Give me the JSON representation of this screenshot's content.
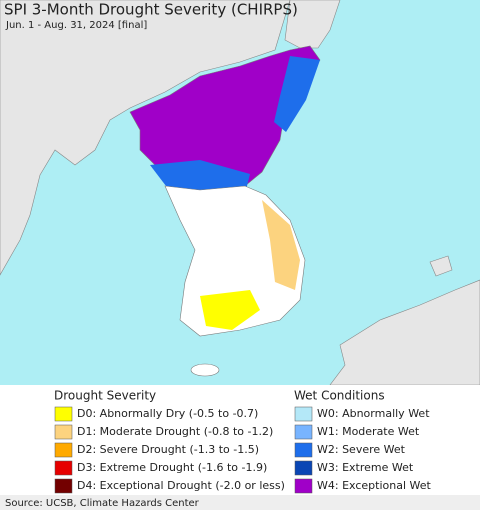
{
  "header": {
    "title": "SPI 3-Month Drought Severity (CHIRPS)",
    "subtitle": "Jun. 1 - Aug. 31, 2024 [final]"
  },
  "legend": {
    "groups": [
      {
        "title": "Drought Severity",
        "items": [
          {
            "label": "D0: Abnormally Dry (-0.5 to -0.7)",
            "color": "#ffff00"
          },
          {
            "label": "D1: Moderate Drought (-0.8 to -1.2)",
            "color": "#fcd37f"
          },
          {
            "label": "D2: Severe Drought (-1.3 to -1.5)",
            "color": "#ffaa00"
          },
          {
            "label": "D3: Extreme Drought (-1.6 to -1.9)",
            "color": "#e60000"
          },
          {
            "label": "D4: Exceptional Drought (-2.0 or less)",
            "color": "#730000"
          }
        ]
      },
      {
        "title": "Wet Conditions",
        "items": [
          {
            "label": "W0: Abnormally Wet",
            "color": "#b4e8f8"
          },
          {
            "label": "W1: Moderate Wet",
            "color": "#78b4ff"
          },
          {
            "label": "W2: Severe Wet",
            "color": "#1e6eeb"
          },
          {
            "label": "W3: Extreme Wet",
            "color": "#0a46b4"
          },
          {
            "label": "W4: Exceptional Wet",
            "color": "#a000c8"
          }
        ]
      }
    ]
  },
  "footer": {
    "source": "Source: UCSB, Climate Hazards Center"
  }
}
